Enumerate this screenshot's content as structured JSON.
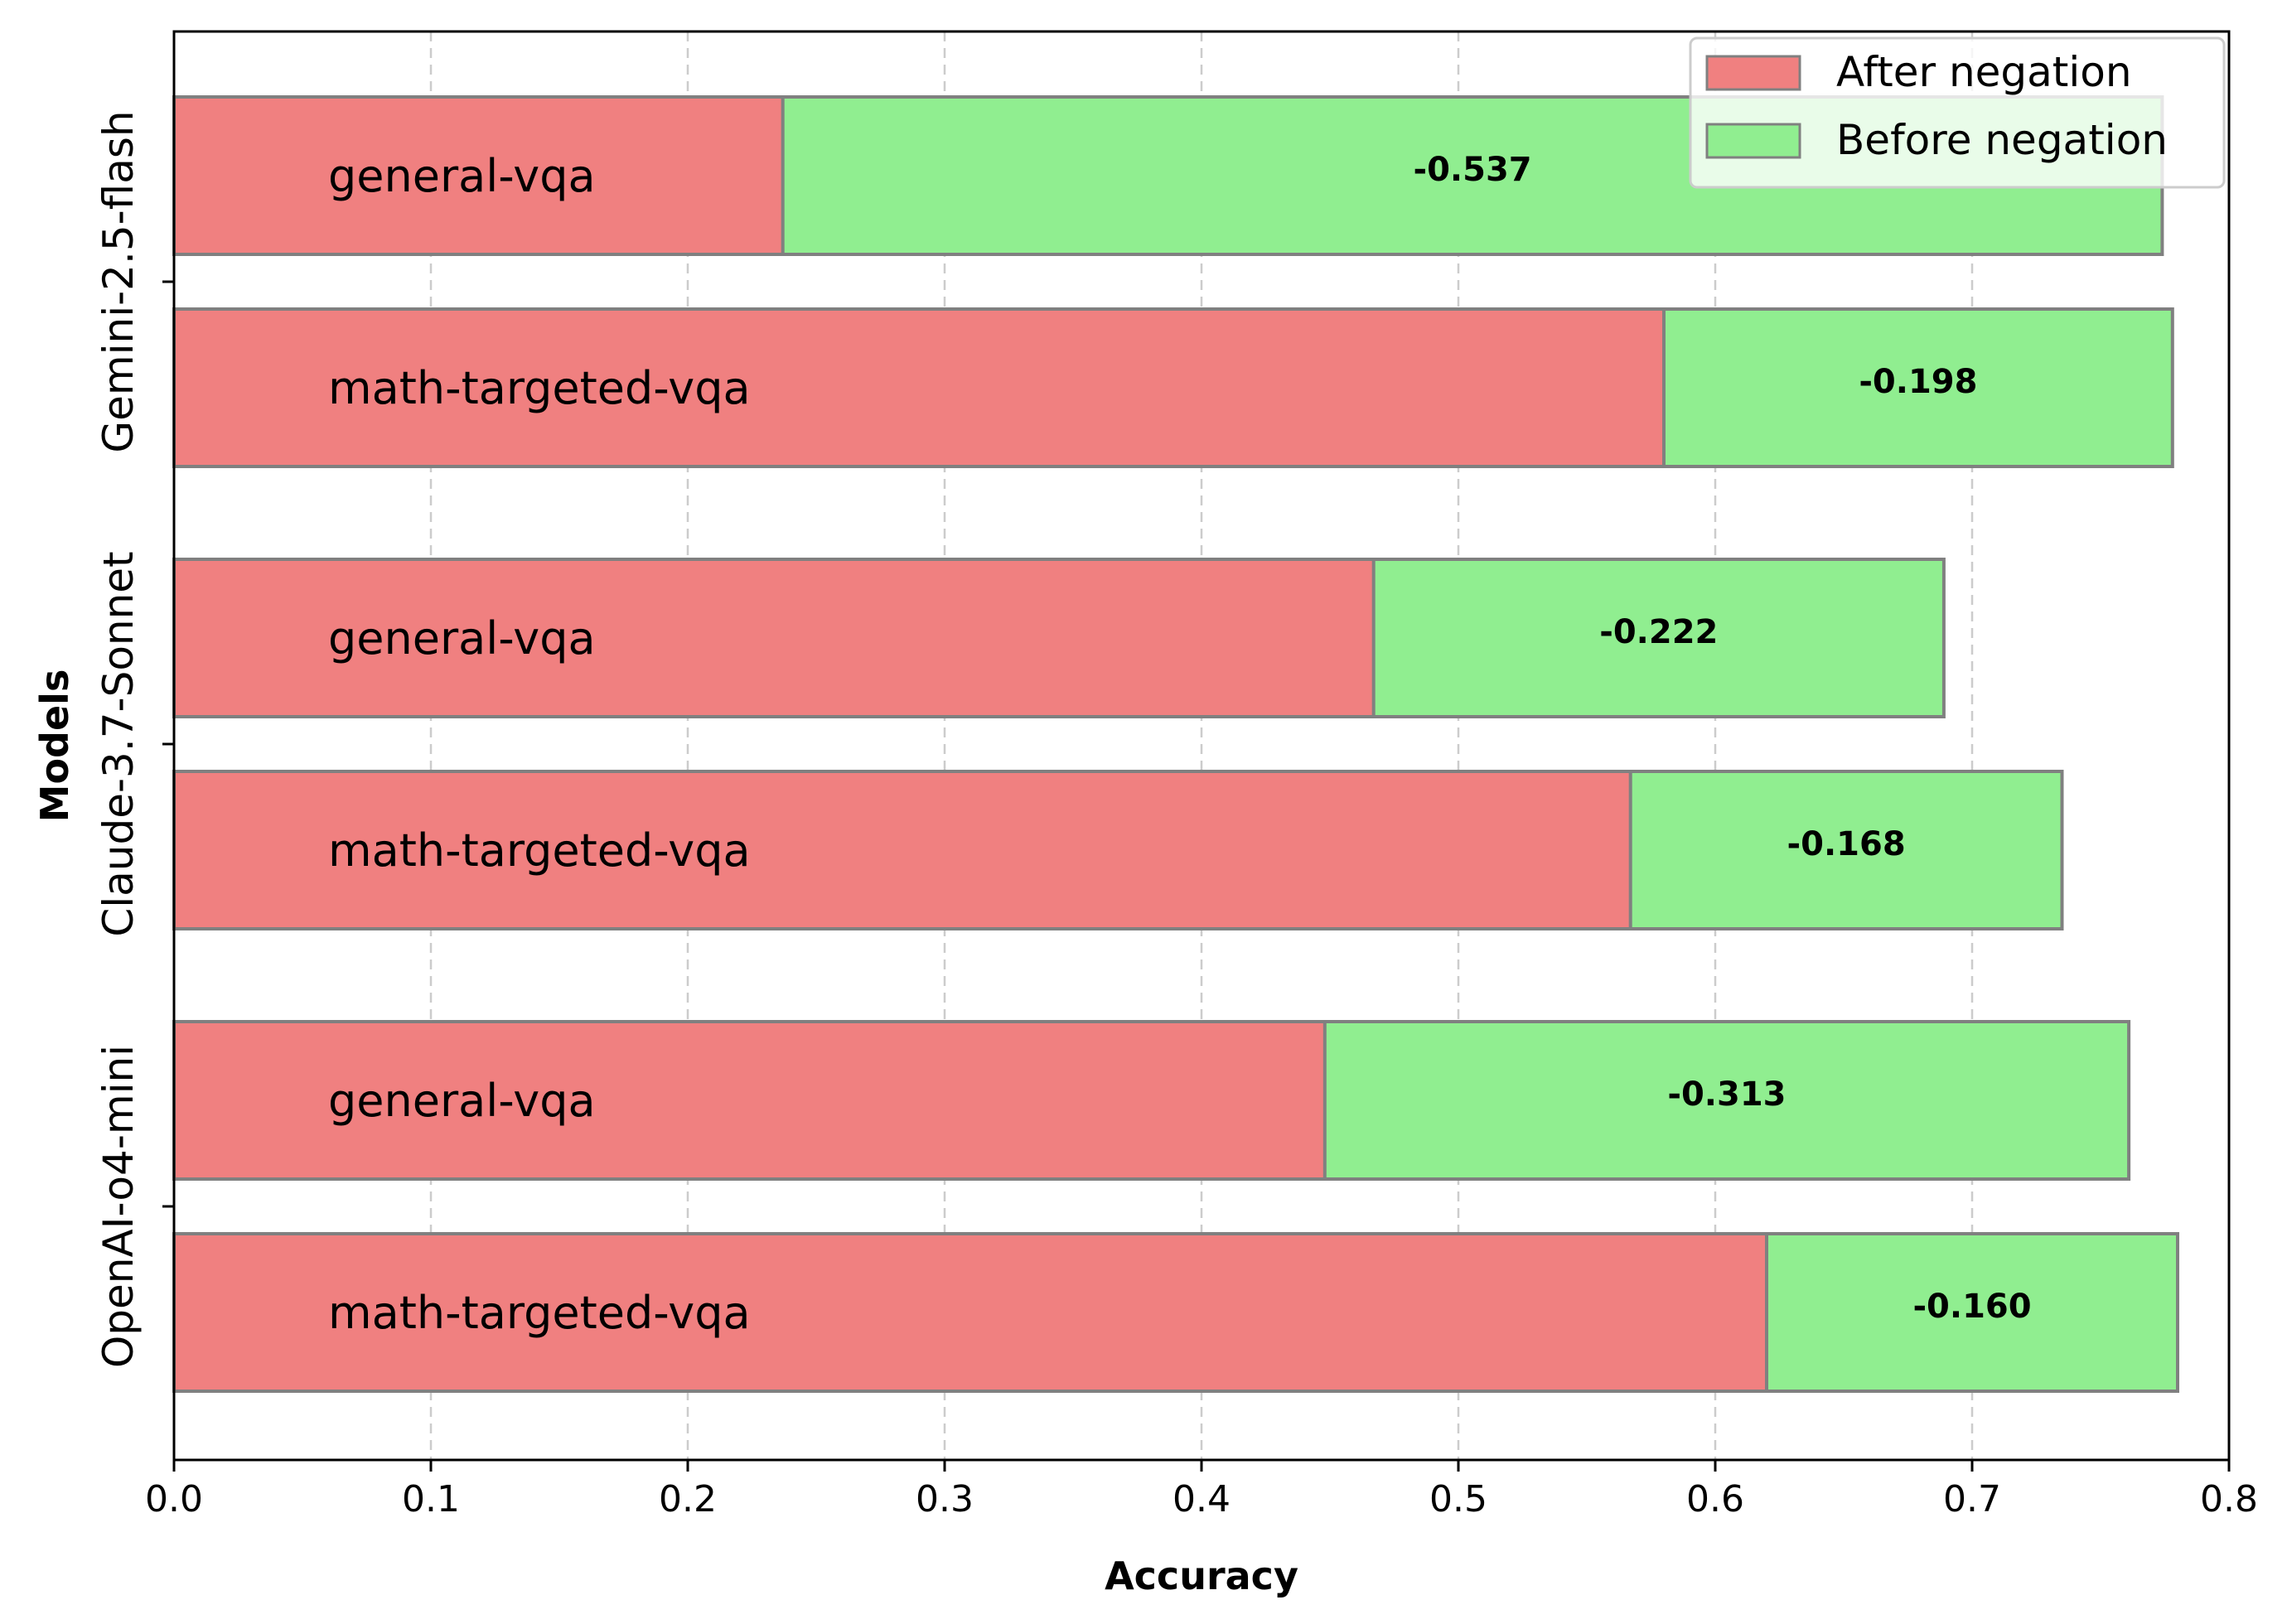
{
  "chart_data": {
    "type": "bar",
    "orientation": "horizontal",
    "stacked": true,
    "xlabel": "Accuracy",
    "ylabel": "Models",
    "xlim": [
      0,
      0.8
    ],
    "xticks": [
      "0.0",
      "0.1",
      "0.2",
      "0.3",
      "0.4",
      "0.5",
      "0.6",
      "0.7",
      "0.8"
    ],
    "grid": "x-dashed",
    "legend": {
      "placement": "top-right",
      "entries": [
        {
          "label": "After negation",
          "color": "#f08080"
        },
        {
          "label": "Before negation",
          "color": "#90ee90"
        }
      ]
    },
    "colors": {
      "after": "#f08080",
      "before": "#90ee90",
      "edge": "#808080"
    },
    "models": [
      {
        "name": "Gemini-2.5-flash",
        "bars": [
          {
            "task": "general-vqa",
            "after": 0.237,
            "before": 0.774,
            "delta": "-0.537"
          },
          {
            "task": "math-targeted-vqa",
            "after": 0.58,
            "before": 0.778,
            "delta": "-0.198"
          }
        ]
      },
      {
        "name": "Claude-3.7-Sonnet",
        "bars": [
          {
            "task": "general-vqa",
            "after": 0.467,
            "before": 0.689,
            "delta": "-0.222"
          },
          {
            "task": "math-targeted-vqa",
            "after": 0.567,
            "before": 0.735,
            "delta": "-0.168"
          }
        ]
      },
      {
        "name": "OpenAI-o4-mini",
        "bars": [
          {
            "task": "general-vqa",
            "after": 0.448,
            "before": 0.761,
            "delta": "-0.313"
          },
          {
            "task": "math-targeted-vqa",
            "after": 0.62,
            "before": 0.78,
            "delta": "-0.160"
          }
        ]
      }
    ]
  }
}
